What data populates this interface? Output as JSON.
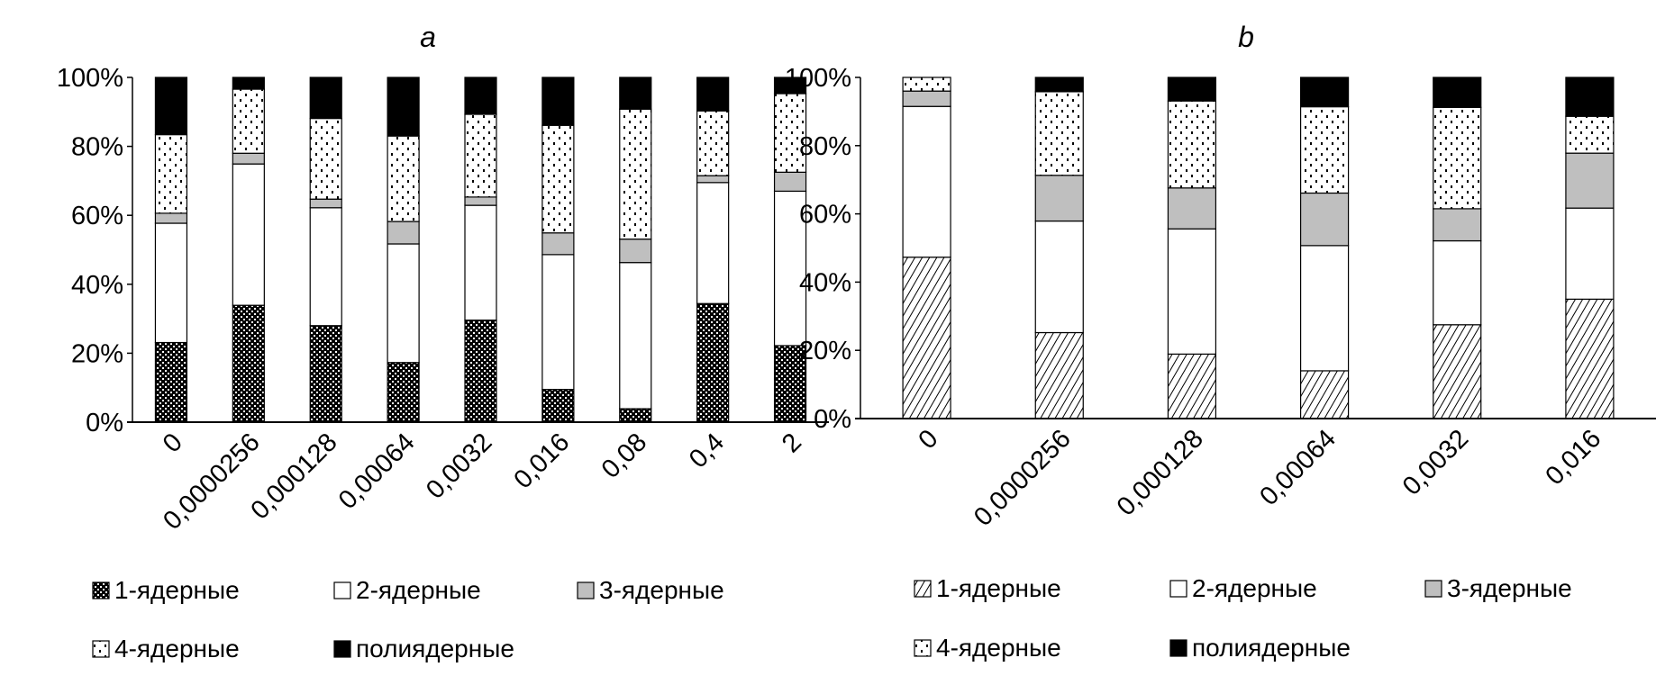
{
  "chart_data": [
    {
      "type": "bar",
      "stacked": true,
      "title": "a",
      "xlabel": "",
      "ylabel": "",
      "ylim": [
        0,
        100
      ],
      "yticks": [
        "0%",
        "20%",
        "40%",
        "60%",
        "80%",
        "100%"
      ],
      "categories": [
        "0",
        "0,0000256",
        "0,000128",
        "0,00064",
        "0,0032",
        "0,016",
        "0,08",
        "0,4",
        "2"
      ],
      "series": [
        {
          "name": "1-ядерные",
          "pattern": "checker",
          "values": [
            23.1,
            33.9,
            28.0,
            17.3,
            29.6,
            9.5,
            3.9,
            34.4,
            22.2
          ]
        },
        {
          "name": "2-ядерные",
          "pattern": "white",
          "values": [
            34.6,
            41.0,
            34.2,
            34.4,
            33.3,
            39.1,
            42.4,
            35.1,
            44.8
          ]
        },
        {
          "name": "3-ядерные",
          "pattern": "gray",
          "values": [
            2.9,
            3.1,
            2.5,
            6.5,
            2.4,
            6.3,
            6.8,
            2.0,
            5.5
          ]
        },
        {
          "name": "4-ядерные",
          "pattern": "dots",
          "values": [
            22.8,
            18.6,
            23.4,
            24.8,
            24.0,
            31.2,
            37.7,
            18.8,
            22.8
          ]
        },
        {
          "name": "полиядерные",
          "pattern": "black",
          "values": [
            16.6,
            3.4,
            11.9,
            17.0,
            10.7,
            13.9,
            9.2,
            9.7,
            4.7
          ]
        }
      ],
      "legend": "bottom"
    },
    {
      "type": "bar",
      "stacked": true,
      "title": "b",
      "xlabel": "",
      "ylabel": "",
      "ylim": [
        0,
        100
      ],
      "yticks": [
        "0%",
        "20%",
        "40%",
        "60%",
        "80%",
        "100%"
      ],
      "categories": [
        "0",
        "0,0000256",
        "0,000128",
        "0,00064",
        "0,0032",
        "0,016"
      ],
      "series": [
        {
          "name": "1-ядерные",
          "pattern": "hatch",
          "values": [
            47.3,
            25.2,
            18.9,
            14.0,
            27.5,
            35.0
          ]
        },
        {
          "name": "2-ядерные",
          "pattern": "white",
          "values": [
            44.2,
            32.7,
            36.7,
            36.7,
            24.6,
            26.7
          ]
        },
        {
          "name": "3-ядерные",
          "pattern": "gray",
          "values": [
            4.5,
            13.4,
            12.0,
            15.4,
            9.4,
            16.1
          ]
        },
        {
          "name": "4-ядерные",
          "pattern": "dots",
          "values": [
            4.0,
            24.5,
            25.5,
            25.3,
            29.7,
            10.8
          ]
        },
        {
          "name": "полиядерные",
          "pattern": "black",
          "values": [
            0.0,
            4.2,
            6.9,
            8.6,
            8.8,
            11.4
          ]
        }
      ],
      "legend": "bottom"
    }
  ],
  "colors": {
    "gray": "#bfbfbf",
    "black": "#000000",
    "white": "#ffffff"
  }
}
